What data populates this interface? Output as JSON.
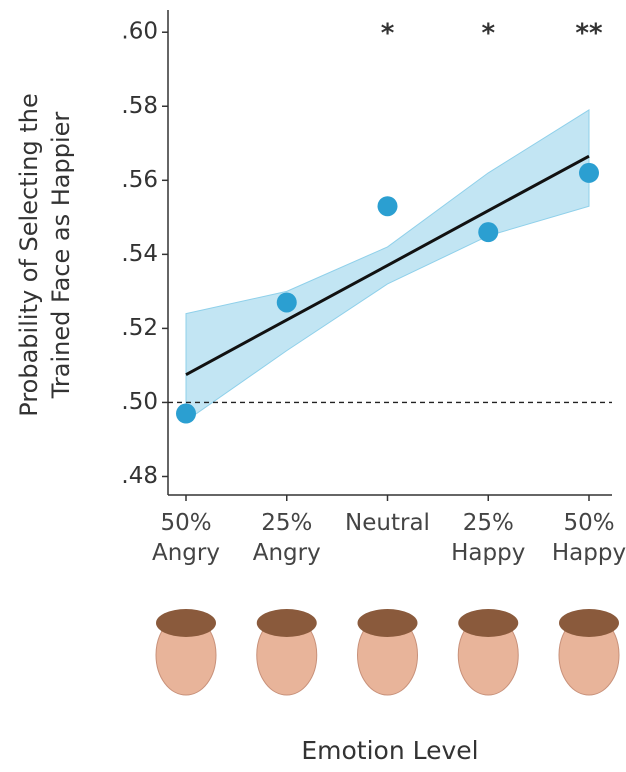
{
  "chart_data": {
    "type": "scatter",
    "y_label": [
      "Probability of Selecting the",
      "Trained Face as Happier"
    ],
    "x_label": "Emotion Level",
    "categories": [
      "50% Angry",
      "25% Angry",
      "Neutral",
      "25% Happy",
      "50% Happy"
    ],
    "values": [
      0.497,
      0.527,
      0.553,
      0.546,
      0.562
    ],
    "color": "#2b9fd1",
    "fit": [
      0.5075,
      0.5223,
      0.537,
      0.5518,
      0.5665
    ],
    "fit_color": "#111111",
    "band": {
      "lower": [
        0.495,
        0.514,
        0.532,
        0.545,
        0.553
      ],
      "upper": [
        0.524,
        0.53,
        0.542,
        0.562,
        0.579
      ],
      "color": "#8fd0ea"
    },
    "reference": 0.5,
    "annotations": [
      "",
      "",
      "*",
      "*",
      "**"
    ],
    "ylim": [
      0.475,
      0.606
    ],
    "yticks": [
      {
        "value": 0.48,
        "label": ".48"
      },
      {
        "value": 0.5,
        "label": ".50"
      },
      {
        "value": 0.52,
        "label": ".52"
      },
      {
        "value": 0.54,
        "label": ".54"
      },
      {
        "value": 0.56,
        "label": ".56"
      },
      {
        "value": 0.58,
        "label": ".58"
      },
      {
        "value": 0.6,
        "label": ".60"
      }
    ]
  }
}
